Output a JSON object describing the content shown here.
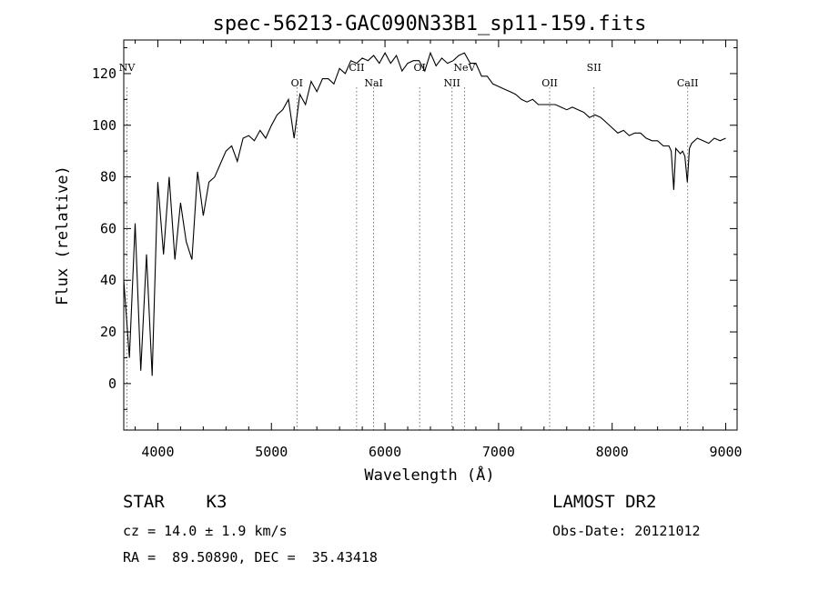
{
  "chart_data": {
    "type": "line",
    "title": "spec-56213-GAC090N33B1_sp11-159.fits",
    "xlabel": "Wavelength (Å)",
    "ylabel": "Flux (relative)",
    "xlim": [
      3700,
      9100
    ],
    "ylim": [
      -18,
      133
    ],
    "x_ticks": [
      4000,
      5000,
      6000,
      7000,
      8000,
      9000
    ],
    "y_ticks": [
      0,
      20,
      40,
      60,
      80,
      100,
      120
    ],
    "grid": false,
    "series": [
      {
        "x": [
          3700,
          3750,
          3800,
          3850,
          3900,
          3950,
          4000,
          4050,
          4100,
          4150,
          4200,
          4250,
          4300,
          4350,
          4400,
          4450,
          4500,
          4550,
          4600,
          4650,
          4700,
          4750,
          4800,
          4850,
          4900,
          4950,
          5000,
          5050,
          5100,
          5150,
          5200,
          5250,
          5300,
          5350,
          5400,
          5450,
          5500,
          5550,
          5600,
          5650,
          5700,
          5750,
          5800,
          5850,
          5900,
          5950,
          6000,
          6050,
          6100,
          6150,
          6200,
          6250,
          6300,
          6350,
          6400,
          6450,
          6500,
          6550,
          6600,
          6650,
          6700,
          6750,
          6800,
          6850,
          6900,
          6950,
          7000,
          7050,
          7100,
          7150,
          7200,
          7250,
          7300,
          7350,
          7400,
          7450,
          7500,
          7550,
          7600,
          7650,
          7700,
          7750,
          7800,
          7850,
          7900,
          7950,
          8000,
          8050,
          8100,
          8150,
          8200,
          8250,
          8300,
          8350,
          8400,
          8450,
          8500,
          8520,
          8542,
          8560,
          8600,
          8620,
          8640,
          8662,
          8680,
          8700,
          8750,
          8800,
          8850,
          8900,
          8950,
          9000
        ],
        "y": [
          40,
          10,
          62,
          5,
          50,
          3,
          78,
          50,
          80,
          48,
          70,
          55,
          48,
          82,
          65,
          78,
          80,
          85,
          90,
          92,
          86,
          95,
          96,
          94,
          98,
          95,
          100,
          104,
          106,
          110,
          95,
          112,
          108,
          117,
          113,
          118,
          118,
          116,
          122,
          120,
          125,
          124,
          126,
          125,
          127,
          124,
          128,
          124,
          127,
          121,
          124,
          125,
          125,
          121,
          128,
          123,
          126,
          124,
          125,
          127,
          128,
          124,
          124,
          119,
          119,
          116,
          115,
          114,
          113,
          112,
          110,
          109,
          110,
          108,
          108,
          108,
          108,
          107,
          106,
          107,
          106,
          105,
          103,
          104,
          103,
          101,
          99,
          97,
          98,
          96,
          97,
          97,
          95,
          94,
          94,
          92,
          92,
          90,
          75,
          91,
          89,
          90,
          88,
          78,
          91,
          93,
          95,
          94,
          93,
          95,
          94,
          95
        ],
        "color": "#000000"
      }
    ],
    "spectral_lines": [
      {
        "label": "NV",
        "wavelength": 3728
      },
      {
        "label": "OI",
        "wavelength": 5225
      },
      {
        "label": "CII",
        "wavelength": 5750
      },
      {
        "label": "NaI",
        "wavelength": 5900
      },
      {
        "label": "OI",
        "wavelength": 6305
      },
      {
        "label": "NII",
        "wavelength": 6590
      },
      {
        "label": "NeV",
        "wavelength": 6700
      },
      {
        "label": "OII",
        "wavelength": 7450
      },
      {
        "label": "SII",
        "wavelength": 7840
      },
      {
        "label": "CaII",
        "wavelength": 8665
      }
    ]
  },
  "info": {
    "class": "STAR    K3",
    "survey": "LAMOST DR2",
    "cz": "cz = 14.0 ± 1.9 km/s",
    "obs_date": "Obs-Date: 20121012",
    "radec": "RA =  89.50890, DEC =  35.43418"
  }
}
